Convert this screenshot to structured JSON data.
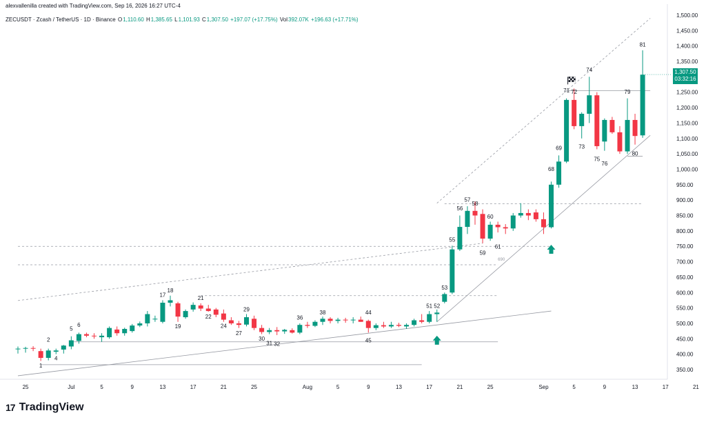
{
  "header": {
    "credit": "alexvallenilla created with TradingView.com, Sep 16, 2026 16:27 UTC-4",
    "symbol": "ZECUSDT · Zcash / TetherUS · 1D · Binance",
    "o_label": "O",
    "o": "1,110.60",
    "h_label": "H",
    "h": "1,385.65",
    "l_label": "L",
    "l": "1,101.93",
    "c_label": "C",
    "c": "1,307.50",
    "change": "+197.07 (+17.75%)",
    "vol_label": "Vol",
    "vol": "392.07K",
    "vol_change": "+196.63 (+17.71%)"
  },
  "price_badge": {
    "price": "1,307.50",
    "countdown": "03:32:16"
  },
  "footer": {
    "brand": "TradingView",
    "mark": "17"
  },
  "colors": {
    "up": "#089981",
    "down": "#f23645",
    "grid": "#f0f3fa",
    "line": "#9598a1",
    "arrow": "#089981"
  },
  "chart_data": {
    "type": "candlestick",
    "ylim": [
      290,
      1500
    ],
    "y_ticks": [
      "1,500.00",
      "1,450.00",
      "1,400.00",
      "1,350.00",
      "1,300.00",
      "1,250.00",
      "1,200.00",
      "1,150.00",
      "1,100.00",
      "1,050.00",
      "1,000.00",
      "950.00",
      "900.00",
      "850.00",
      "800.00",
      "750.00",
      "700.00",
      "650.00",
      "600.00",
      "550.00",
      "500.00",
      "450.00",
      "400.00",
      "350.00"
    ],
    "y_tick_values": [
      1500,
      1450,
      1400,
      1350,
      1300,
      1250,
      1200,
      1150,
      1100,
      1050,
      1000,
      950,
      900,
      850,
      800,
      750,
      700,
      650,
      600,
      550,
      500,
      450,
      400,
      350
    ],
    "x_ticks": [
      {
        "label": "25",
        "day": -6
      },
      {
        "label": "Jul",
        "day": 0
      },
      {
        "label": "5",
        "day": 4
      },
      {
        "label": "9",
        "day": 8
      },
      {
        "label": "13",
        "day": 12
      },
      {
        "label": "17",
        "day": 16
      },
      {
        "label": "21",
        "day": 20
      },
      {
        "label": "25",
        "day": 24
      },
      {
        "label": "Aug",
        "day": 31
      },
      {
        "label": "5",
        "day": 35
      },
      {
        "label": "9",
        "day": 39
      },
      {
        "label": "13",
        "day": 43
      },
      {
        "label": "17",
        "day": 47
      },
      {
        "label": "21",
        "day": 51
      },
      {
        "label": "25",
        "day": 55
      },
      {
        "label": "Sep",
        "day": 62
      },
      {
        "label": "5",
        "day": 66
      },
      {
        "label": "9",
        "day": 70
      },
      {
        "label": "13",
        "day": 74
      },
      {
        "label": "17",
        "day": 78
      },
      {
        "label": "21",
        "day": 82
      },
      {
        "label": "25",
        "day": 86
      }
    ],
    "candles": [
      {
        "d": -7,
        "o": 418,
        "h": 425,
        "l": 402,
        "c": 418
      },
      {
        "d": -6,
        "o": 418,
        "h": 424,
        "l": 405,
        "c": 420
      },
      {
        "d": -5,
        "o": 420,
        "h": 426,
        "l": 410,
        "c": 418
      },
      {
        "d": -4,
        "o": 410,
        "h": 418,
        "l": 378,
        "c": 388
      },
      {
        "d": -3,
        "o": 388,
        "h": 418,
        "l": 380,
        "c": 412
      },
      {
        "d": -2,
        "o": 408,
        "h": 418,
        "l": 400,
        "c": 412
      },
      {
        "d": -1,
        "o": 415,
        "h": 430,
        "l": 402,
        "c": 428
      },
      {
        "d": 0,
        "o": 425,
        "h": 458,
        "l": 416,
        "c": 445
      },
      {
        "d": 1,
        "o": 443,
        "h": 470,
        "l": 434,
        "c": 465
      },
      {
        "d": 2,
        "o": 465,
        "h": 470,
        "l": 455,
        "c": 460
      },
      {
        "d": 3,
        "o": 460,
        "h": 468,
        "l": 450,
        "c": 458
      },
      {
        "d": 4,
        "o": 455,
        "h": 468,
        "l": 440,
        "c": 460
      },
      {
        "d": 5,
        "o": 455,
        "h": 490,
        "l": 450,
        "c": 485
      },
      {
        "d": 6,
        "o": 480,
        "h": 490,
        "l": 460,
        "c": 468
      },
      {
        "d": 7,
        "o": 468,
        "h": 486,
        "l": 460,
        "c": 482
      },
      {
        "d": 8,
        "o": 475,
        "h": 498,
        "l": 470,
        "c": 493
      },
      {
        "d": 9,
        "o": 493,
        "h": 506,
        "l": 488,
        "c": 500
      },
      {
        "d": 10,
        "o": 500,
        "h": 540,
        "l": 490,
        "c": 530
      },
      {
        "d": 11,
        "o": 515,
        "h": 525,
        "l": 505,
        "c": 515
      },
      {
        "d": 12,
        "o": 505,
        "h": 575,
        "l": 500,
        "c": 567
      },
      {
        "d": 13,
        "o": 567,
        "h": 590,
        "l": 555,
        "c": 575
      },
      {
        "d": 14,
        "o": 565,
        "h": 570,
        "l": 505,
        "c": 522
      },
      {
        "d": 15,
        "o": 520,
        "h": 545,
        "l": 515,
        "c": 540
      },
      {
        "d": 16,
        "o": 545,
        "h": 568,
        "l": 538,
        "c": 560
      },
      {
        "d": 17,
        "o": 558,
        "h": 565,
        "l": 540,
        "c": 548
      },
      {
        "d": 18,
        "o": 548,
        "h": 560,
        "l": 538,
        "c": 540
      },
      {
        "d": 19,
        "o": 545,
        "h": 550,
        "l": 520,
        "c": 528
      },
      {
        "d": 20,
        "o": 532,
        "h": 545,
        "l": 505,
        "c": 512
      },
      {
        "d": 21,
        "o": 510,
        "h": 520,
        "l": 495,
        "c": 500
      },
      {
        "d": 22,
        "o": 500,
        "h": 508,
        "l": 485,
        "c": 495
      },
      {
        "d": 23,
        "o": 496,
        "h": 530,
        "l": 490,
        "c": 520
      },
      {
        "d": 24,
        "o": 515,
        "h": 525,
        "l": 478,
        "c": 485
      },
      {
        "d": 25,
        "o": 485,
        "h": 495,
        "l": 465,
        "c": 472
      },
      {
        "d": 26,
        "o": 472,
        "h": 485,
        "l": 465,
        "c": 478
      },
      {
        "d": 27,
        "o": 478,
        "h": 488,
        "l": 462,
        "c": 474
      },
      {
        "d": 28,
        "o": 474,
        "h": 482,
        "l": 466,
        "c": 479
      },
      {
        "d": 29,
        "o": 478,
        "h": 484,
        "l": 467,
        "c": 470
      },
      {
        "d": 30,
        "o": 470,
        "h": 500,
        "l": 465,
        "c": 495
      },
      {
        "d": 31,
        "o": 495,
        "h": 505,
        "l": 485,
        "c": 492
      },
      {
        "d": 32,
        "o": 492,
        "h": 510,
        "l": 488,
        "c": 505
      },
      {
        "d": 33,
        "o": 505,
        "h": 522,
        "l": 495,
        "c": 515
      },
      {
        "d": 34,
        "o": 515,
        "h": 520,
        "l": 500,
        "c": 508
      },
      {
        "d": 35,
        "o": 508,
        "h": 518,
        "l": 500,
        "c": 512
      },
      {
        "d": 36,
        "o": 512,
        "h": 518,
        "l": 502,
        "c": 510
      },
      {
        "d": 37,
        "o": 510,
        "h": 520,
        "l": 500,
        "c": 512
      },
      {
        "d": 38,
        "o": 512,
        "h": 522,
        "l": 505,
        "c": 505
      },
      {
        "d": 39,
        "o": 508,
        "h": 512,
        "l": 470,
        "c": 485
      },
      {
        "d": 40,
        "o": 485,
        "h": 500,
        "l": 478,
        "c": 494
      },
      {
        "d": 41,
        "o": 494,
        "h": 505,
        "l": 485,
        "c": 490
      },
      {
        "d": 42,
        "o": 490,
        "h": 505,
        "l": 485,
        "c": 495
      },
      {
        "d": 43,
        "o": 495,
        "h": 502,
        "l": 488,
        "c": 492
      },
      {
        "d": 44,
        "o": 490,
        "h": 500,
        "l": 482,
        "c": 495
      },
      {
        "d": 45,
        "o": 495,
        "h": 515,
        "l": 490,
        "c": 510
      },
      {
        "d": 46,
        "o": 510,
        "h": 530,
        "l": 500,
        "c": 505
      },
      {
        "d": 47,
        "o": 505,
        "h": 540,
        "l": 500,
        "c": 530
      },
      {
        "d": 48,
        "o": 530,
        "h": 545,
        "l": 505,
        "c": 535
      },
      {
        "d": 49,
        "o": 570,
        "h": 600,
        "l": 565,
        "c": 595
      },
      {
        "d": 50,
        "o": 600,
        "h": 752,
        "l": 595,
        "c": 740
      },
      {
        "d": 51,
        "o": 740,
        "h": 850,
        "l": 735,
        "c": 813
      },
      {
        "d": 52,
        "o": 813,
        "h": 880,
        "l": 790,
        "c": 865
      },
      {
        "d": 53,
        "o": 865,
        "h": 895,
        "l": 820,
        "c": 850
      },
      {
        "d": 54,
        "o": 855,
        "h": 870,
        "l": 760,
        "c": 775
      },
      {
        "d": 55,
        "o": 775,
        "h": 830,
        "l": 768,
        "c": 820
      },
      {
        "d": 56,
        "o": 820,
        "h": 830,
        "l": 795,
        "c": 812
      },
      {
        "d": 57,
        "o": 812,
        "h": 822,
        "l": 790,
        "c": 808
      },
      {
        "d": 58,
        "o": 808,
        "h": 858,
        "l": 800,
        "c": 850
      },
      {
        "d": 59,
        "o": 850,
        "h": 890,
        "l": 843,
        "c": 858
      },
      {
        "d": 60,
        "o": 858,
        "h": 870,
        "l": 835,
        "c": 850
      },
      {
        "d": 61,
        "o": 860,
        "h": 870,
        "l": 830,
        "c": 838
      },
      {
        "d": 62,
        "o": 838,
        "h": 860,
        "l": 790,
        "c": 812
      },
      {
        "d": 63,
        "o": 812,
        "h": 960,
        "l": 808,
        "c": 950
      },
      {
        "d": 64,
        "o": 950,
        "h": 1045,
        "l": 940,
        "c": 1025
      },
      {
        "d": 65,
        "o": 1025,
        "h": 1230,
        "l": 1020,
        "c": 1225
      },
      {
        "d": 66,
        "o": 1225,
        "h": 1262,
        "l": 1130,
        "c": 1140
      },
      {
        "d": 67,
        "o": 1140,
        "h": 1185,
        "l": 1100,
        "c": 1180
      },
      {
        "d": 68,
        "o": 1180,
        "h": 1300,
        "l": 1150,
        "c": 1240
      },
      {
        "d": 69,
        "o": 1240,
        "h": 1250,
        "l": 1065,
        "c": 1075
      },
      {
        "d": 70,
        "o": 1090,
        "h": 1165,
        "l": 1060,
        "c": 1160
      },
      {
        "d": 71,
        "o": 1160,
        "h": 1170,
        "l": 1115,
        "c": 1120
      },
      {
        "d": 72,
        "o": 1120,
        "h": 1140,
        "l": 1050,
        "c": 1058
      },
      {
        "d": 73,
        "o": 1058,
        "h": 1230,
        "l": 1050,
        "c": 1160
      },
      {
        "d": 74,
        "o": 1160,
        "h": 1180,
        "l": 1080,
        "c": 1108
      },
      {
        "d": 75,
        "o": 1110,
        "h": 1386,
        "l": 1102,
        "c": 1307
      }
    ],
    "annotations": [
      {
        "t": "1",
        "d": -4,
        "v": 375,
        "pos": "below"
      },
      {
        "t": "2",
        "d": -3,
        "v": 436,
        "pos": "above"
      },
      {
        "t": "4",
        "d": -2,
        "v": 398,
        "pos": "below"
      },
      {
        "t": "5",
        "d": 0,
        "v": 472,
        "pos": "above"
      },
      {
        "t": "6",
        "d": 1,
        "v": 484,
        "pos": "above"
      },
      {
        "t": "17",
        "d": 12,
        "v": 582,
        "pos": "above"
      },
      {
        "t": "18",
        "d": 13,
        "v": 596,
        "pos": "above"
      },
      {
        "t": "19",
        "d": 14,
        "v": 502,
        "pos": "below"
      },
      {
        "t": "21",
        "d": 17,
        "v": 572,
        "pos": "above"
      },
      {
        "t": "22",
        "d": 18,
        "v": 533,
        "pos": "below"
      },
      {
        "t": "24",
        "d": 20,
        "v": 503,
        "pos": "below"
      },
      {
        "t": "27",
        "d": 22,
        "v": 480,
        "pos": "below"
      },
      {
        "t": "29",
        "d": 23,
        "v": 535,
        "pos": "above"
      },
      {
        "t": "30",
        "d": 25,
        "v": 462,
        "pos": "below"
      },
      {
        "t": "31",
        "d": 26,
        "v": 447,
        "pos": "below"
      },
      {
        "t": "32",
        "d": 27,
        "v": 445,
        "pos": "below"
      },
      {
        "t": "36",
        "d": 30,
        "v": 508,
        "pos": "above"
      },
      {
        "t": "38",
        "d": 33,
        "v": 525,
        "pos": "above"
      },
      {
        "t": "44",
        "d": 39,
        "v": 525,
        "pos": "above"
      },
      {
        "t": "45",
        "d": 39,
        "v": 456,
        "pos": "below"
      },
      {
        "t": "51",
        "d": 47,
        "v": 546,
        "pos": "above"
      },
      {
        "t": "52",
        "d": 48,
        "v": 546,
        "pos": "above"
      },
      {
        "t": "53",
        "d": 49,
        "v": 605,
        "pos": "above"
      },
      {
        "t": "55",
        "d": 50,
        "v": 760,
        "pos": "above"
      },
      {
        "t": "56",
        "d": 51,
        "v": 862,
        "pos": "above"
      },
      {
        "t": "57",
        "d": 52,
        "v": 890,
        "pos": "above"
      },
      {
        "t": "58",
        "d": 53,
        "v": 878,
        "pos": "above"
      },
      {
        "t": "59",
        "d": 54,
        "v": 740,
        "pos": "below"
      },
      {
        "t": "60",
        "d": 55,
        "v": 835,
        "pos": "above"
      },
      {
        "t": "61",
        "d": 56,
        "v": 760,
        "pos": "below"
      },
      {
        "t": "68",
        "d": 63,
        "v": 990,
        "pos": "above"
      },
      {
        "t": "69",
        "d": 64,
        "v": 1058,
        "pos": "above"
      },
      {
        "t": "71",
        "d": 65,
        "v": 1245,
        "pos": "above"
      },
      {
        "t": "72",
        "d": 66,
        "v": 1240,
        "pos": "above"
      },
      {
        "t": "73",
        "d": 67,
        "v": 1085,
        "pos": "below"
      },
      {
        "t": "74",
        "d": 68,
        "v": 1312,
        "pos": "above"
      },
      {
        "t": "75",
        "d": 69,
        "v": 1045,
        "pos": "below"
      },
      {
        "t": "76",
        "d": 70,
        "v": 1030,
        "pos": "below"
      },
      {
        "t": "79",
        "d": 73,
        "v": 1240,
        "pos": "above"
      },
      {
        "t": "80",
        "d": 74,
        "v": 1063,
        "pos": "below"
      },
      {
        "t": "81",
        "d": 75,
        "v": 1394,
        "pos": "above"
      }
    ],
    "level_label": "690"
  }
}
